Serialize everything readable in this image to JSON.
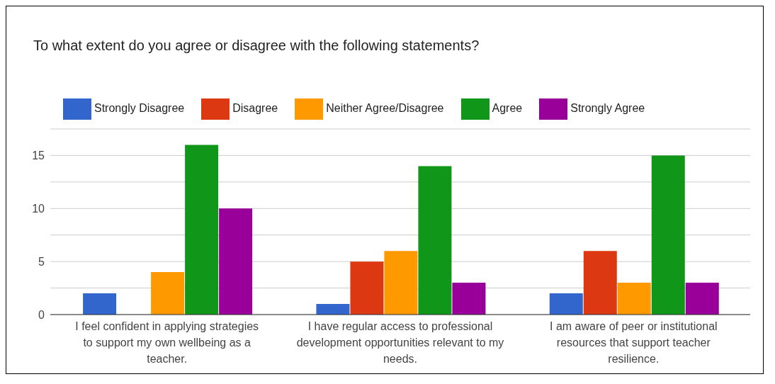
{
  "chart_data": {
    "type": "bar",
    "title": "To what extent do you agree or disagree with the following statements?",
    "categories": [
      "I feel confident in applying strategies to support my own wellbeing as a teacher.",
      "I have regular access to professional development opportunities relevant to my needs.",
      "I am aware of peer or institutional resources that support teacher resilience."
    ],
    "series": [
      {
        "name": "Strongly Disagree",
        "color": "#3366cc",
        "values": [
          2,
          1,
          2
        ]
      },
      {
        "name": "Disagree",
        "color": "#dc3912",
        "values": [
          0,
          5,
          6
        ]
      },
      {
        "name": "Neither Agree/Disagree",
        "color": "#ff9900",
        "values": [
          4,
          6,
          3
        ]
      },
      {
        "name": "Agree",
        "color": "#109618",
        "values": [
          16,
          14,
          15
        ]
      },
      {
        "name": "Strongly Agree",
        "color": "#990099",
        "values": [
          10,
          3,
          3
        ]
      }
    ],
    "ylim": [
      0,
      17.5
    ],
    "yticks": [
      0,
      {
        "value": 2.5,
        "label": null
      },
      5,
      {
        "value": 7.5,
        "label": null
      },
      10,
      {
        "value": 12.5,
        "label": null
      },
      15,
      {
        "value": 17.5,
        "label": null
      }
    ],
    "grid": "y",
    "legend": "top left"
  }
}
